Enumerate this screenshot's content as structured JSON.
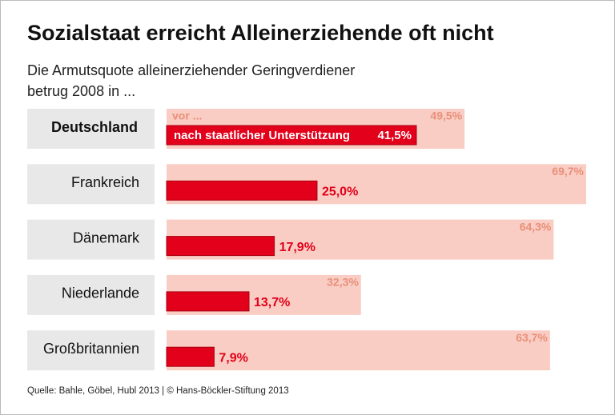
{
  "chart_data": {
    "type": "bar",
    "orientation": "horizontal",
    "title": "Sozialstaat erreicht Alleinerziehende oft nicht",
    "subtitle": [
      "Die Armutsquote alleinerziehender Geringverdiener",
      "betrug 2008 in ..."
    ],
    "categories": [
      "Deutschland",
      "Frankreich",
      "Dänemark",
      "Niederlande",
      "Großbritannien"
    ],
    "series": [
      {
        "name": "vor ...",
        "color": "#f9cdc3",
        "label_color": "#e8907a",
        "values": [
          49.5,
          69.7,
          64.3,
          32.3,
          63.7
        ],
        "value_labels": [
          "49,5%",
          "69,7%",
          "64,3%",
          "32,3%",
          "63,7%"
        ]
      },
      {
        "name": "nach staatlicher Unterstützung",
        "color": "#e2001a",
        "label_color": "#e2001a",
        "values": [
          41.5,
          25.0,
          17.9,
          13.7,
          7.9
        ],
        "value_labels": [
          "41,5%",
          "25,0%",
          "17,9%",
          "13,7%",
          "7,9%"
        ]
      }
    ],
    "source": "Quelle: Bahle, Göbel, Hubl 2013 | © Hans-Böckler-Stiftung 2013"
  }
}
